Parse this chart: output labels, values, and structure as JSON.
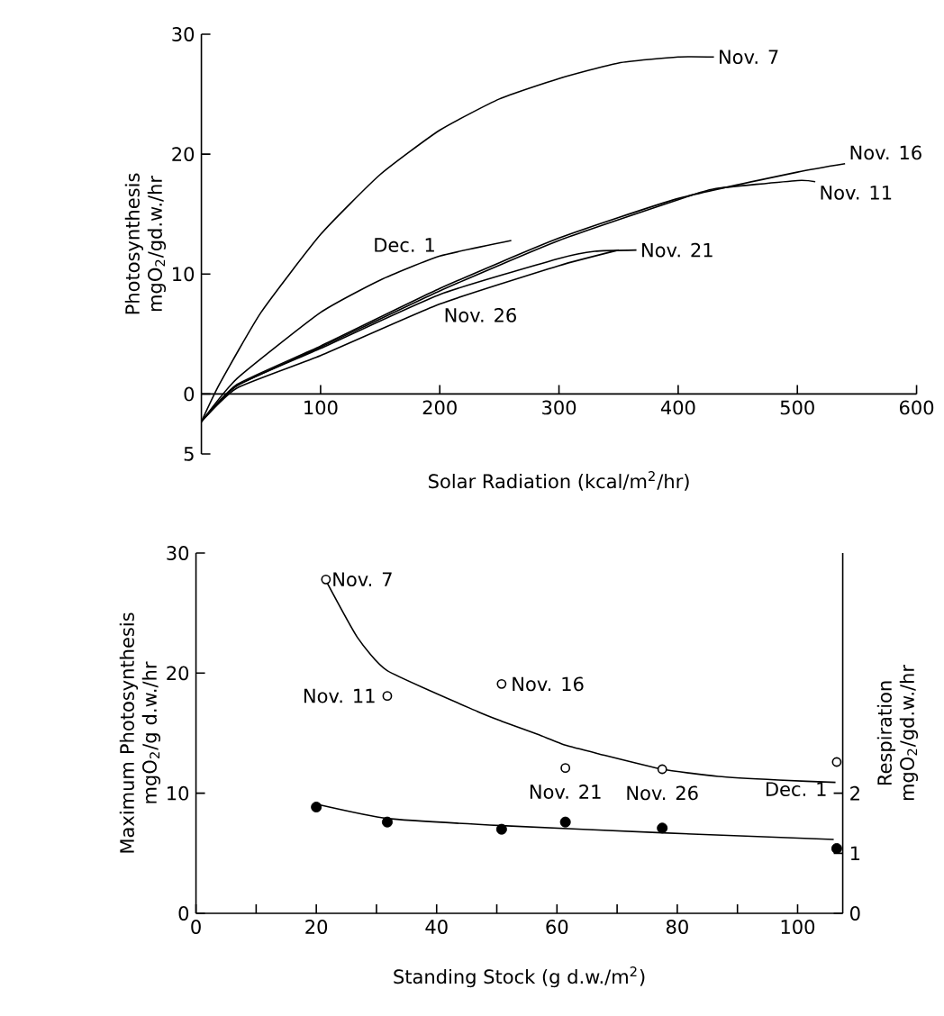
{
  "chart_data": [
    {
      "type": "line",
      "xlabel": "Solar Radiation (kcal/m$^{2}$/hr)",
      "ylabel": "Photosynthesis mgO$_{2}$/gd.w./hr",
      "xlim": [
        0,
        600
      ],
      "ylim": [
        -5,
        30
      ],
      "xticks": [
        100,
        200,
        300,
        400,
        500,
        600
      ],
      "yticks": [
        {
          "value": -5,
          "label": "5"
        },
        0,
        10,
        20,
        30
      ],
      "series": [
        {
          "name": "Nov. 7",
          "color": "#000000",
          "x": [
            0,
            15,
            50,
            100,
            150,
            200,
            250,
            300,
            350,
            400,
            430
          ],
          "values": [
            -2.3,
            0.8,
            6.8,
            13.3,
            18.3,
            22,
            24.6,
            26.3,
            27.6,
            28.1,
            28.1
          ]
        },
        {
          "name": "Nov. 16",
          "color": "#000000",
          "x": [
            0,
            30,
            100,
            200,
            300,
            400,
            500,
            540
          ],
          "values": [
            -2.3,
            0.8,
            4,
            8.8,
            13,
            16.3,
            18.5,
            19.2
          ]
        },
        {
          "name": "Nov. 11",
          "color": "#000000",
          "x": [
            0,
            30,
            100,
            200,
            300,
            400,
            430,
            500,
            515
          ],
          "values": [
            -2.3,
            0.7,
            3.9,
            8.6,
            12.8,
            16.2,
            17.1,
            17.8,
            17.7
          ]
        },
        {
          "name": "Nov. 21",
          "color": "#000000",
          "x": [
            0,
            30,
            100,
            200,
            300,
            330,
            365
          ],
          "values": [
            -2.3,
            0.7,
            3.8,
            8.3,
            11.3,
            11.9,
            12
          ]
        },
        {
          "name": "Nov. 26",
          "color": "#000000",
          "x": [
            0,
            30,
            100,
            200,
            300,
            350
          ],
          "values": [
            -2.3,
            0.5,
            3.2,
            7.5,
            10.7,
            12
          ]
        },
        {
          "name": "Dec. 1",
          "color": "#000000",
          "x": [
            0,
            30,
            100,
            150,
            200,
            260
          ],
          "values": [
            -2.3,
            1.3,
            6.8,
            9.5,
            11.5,
            12.8
          ]
        }
      ]
    },
    {
      "type": "scatter",
      "xlabel": "Standing Stock (g d.w./m$^{2}$)",
      "ylabel": "Maximum Photosynthesis mgO$_{2}$/g d.w./hr",
      "y2label": "Respiration mgO$_{2}$/gd.w./hr",
      "xlim": [
        0,
        107.5
      ],
      "ylim": [
        0,
        30
      ],
      "y2lim": [
        0,
        6
      ],
      "xticks": [
        0,
        {
          "value": 10,
          "label": null
        },
        20,
        {
          "value": 30,
          "label": null
        },
        40,
        {
          "value": 50,
          "label": null
        },
        60,
        {
          "value": 70,
          "label": null
        },
        80,
        {
          "value": 90,
          "label": null
        },
        100
      ],
      "yticks": [
        0,
        10,
        20,
        30
      ],
      "y2ticks": [
        0,
        1,
        2
      ],
      "series": [
        {
          "type": "scatter",
          "marker": "circle",
          "color": "#000000",
          "x": [
            21.6,
            31.8,
            50.8,
            61.4,
            77.5,
            106.5
          ],
          "values": [
            27.8,
            18.1,
            19.1,
            12.1,
            12,
            12.6
          ]
        },
        {
          "type": "line",
          "color": "#000000",
          "x": [
            21.6,
            26.8,
            31.8,
            46.8,
            50.8,
            56.8,
            61.4,
            66.8,
            77.5,
            86.8,
            96.8,
            106.3
          ],
          "values": [
            27.7,
            23,
            20.2,
            16.8,
            16,
            14.9,
            14,
            13.3,
            12,
            11.4,
            11.1,
            10.9
          ]
        },
        {
          "type": "scatter",
          "marker": "circle",
          "axis": "y2",
          "color": "#000000",
          "x": [
            20,
            31.8,
            50.8,
            61.4,
            77.5,
            106.5
          ],
          "values": [
            1.77,
            1.52,
            1.4,
            1.52,
            1.42,
            1.08
          ]
        },
        {
          "type": "line",
          "axis": "y2",
          "color": "#000000",
          "x": [
            20,
            31.8,
            50.8,
            77.5,
            106
          ],
          "values": [
            1.82,
            1.58,
            1.46,
            1.34,
            1.23
          ]
        }
      ],
      "annotations": [
        {
          "text": "Nov. 7",
          "x": 21.6,
          "y": 27.8
        },
        {
          "text": "Nov. 11",
          "x": 31.8,
          "y": 18.1
        },
        {
          "text": "Nov. 16",
          "x": 50.8,
          "y": 19.1
        },
        {
          "text": "Nov. 21",
          "x": 61.4,
          "y": 12.1
        },
        {
          "text": "Nov. 26",
          "x": 77.5,
          "y": 12
        },
        {
          "text": "Dec. 1",
          "x": 106.5,
          "y": 12.6
        }
      ]
    }
  ]
}
